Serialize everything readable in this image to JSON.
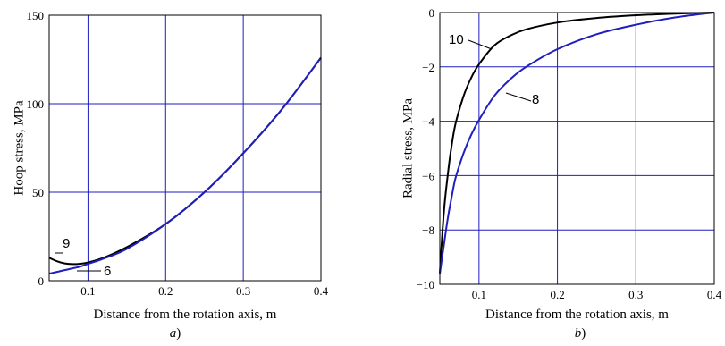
{
  "chart_data": [
    {
      "type": "line",
      "caption_letter": "a",
      "caption_paren": ")",
      "xlabel": "Distance from the rotation axis, m",
      "ylabel": "Hoop stress, MPa",
      "xlim": [
        0.05,
        0.4
      ],
      "ylim": [
        0,
        150
      ],
      "xticks": [
        0.1,
        0.2,
        0.3,
        0.4
      ],
      "xtick_labels": [
        "0.1",
        "0.2",
        "0.3",
        "0.4"
      ],
      "yticks": [
        0,
        50,
        100,
        150
      ],
      "ytick_labels": [
        "0",
        "50",
        "100",
        "150"
      ],
      "grid": true,
      "series": [
        {
          "name": "9",
          "color": "#000000",
          "x": [
            0.05,
            0.06,
            0.07,
            0.08,
            0.09,
            0.1,
            0.12,
            0.15,
            0.2,
            0.25,
            0.3,
            0.35,
            0.4
          ],
          "y": [
            13,
            11,
            9.8,
            9.4,
            9.6,
            10.3,
            13,
            19,
            32,
            50,
            72,
            97,
            126
          ]
        },
        {
          "name": "6",
          "color": "#1f1fbf",
          "x": [
            0.05,
            0.06,
            0.07,
            0.08,
            0.09,
            0.1,
            0.12,
            0.15,
            0.2,
            0.25,
            0.3,
            0.35,
            0.4
          ],
          "y": [
            4,
            5,
            6,
            7,
            8,
            9.5,
            12.5,
            18,
            32,
            50,
            72,
            97,
            126
          ]
        }
      ]
    },
    {
      "type": "line",
      "caption_letter": "b",
      "caption_paren": ")",
      "xlabel": "Distance from the rotation axis, m",
      "ylabel": "Radial stress, MPa",
      "xlim": [
        0.05,
        0.4
      ],
      "ylim": [
        -10,
        0
      ],
      "xticks": [
        0.1,
        0.2,
        0.3,
        0.4
      ],
      "xtick_labels": [
        "0.1",
        "0.2",
        "0.3",
        "0.4"
      ],
      "yticks": [
        0,
        -2,
        -4,
        -6,
        -8,
        -10
      ],
      "ytick_labels": [
        "0",
        "−2",
        "−4",
        "−6",
        "−8",
        "−10"
      ],
      "grid": true,
      "series": [
        {
          "name": "10",
          "color": "#000000",
          "x": [
            0.05,
            0.055,
            0.06,
            0.065,
            0.07,
            0.08,
            0.09,
            0.1,
            0.12,
            0.14,
            0.16,
            0.2,
            0.25,
            0.3,
            0.35,
            0.4
          ],
          "y": [
            -9.6,
            -7.4,
            -6.0,
            -4.9,
            -4.1,
            -3.1,
            -2.4,
            -1.9,
            -1.2,
            -0.85,
            -0.62,
            -0.37,
            -0.2,
            -0.1,
            -0.04,
            0
          ]
        },
        {
          "name": "8",
          "color": "#1f1fbf",
          "x": [
            0.05,
            0.055,
            0.06,
            0.065,
            0.07,
            0.08,
            0.09,
            0.1,
            0.12,
            0.14,
            0.16,
            0.2,
            0.25,
            0.3,
            0.35,
            0.4
          ],
          "y": [
            -9.6,
            -8.6,
            -7.6,
            -6.8,
            -6.1,
            -5.2,
            -4.5,
            -3.95,
            -3.05,
            -2.45,
            -2.0,
            -1.35,
            -0.8,
            -0.45,
            -0.18,
            0
          ]
        }
      ]
    }
  ]
}
